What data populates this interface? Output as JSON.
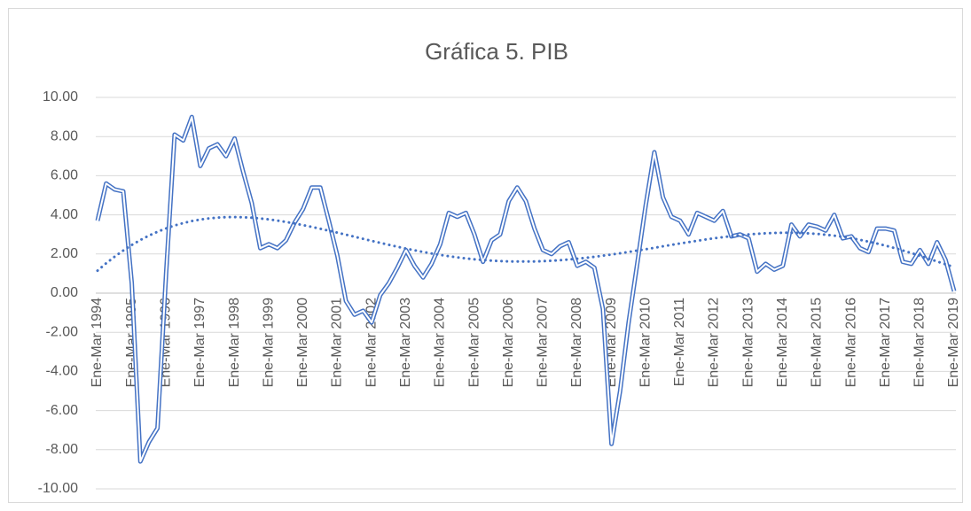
{
  "chart_data": {
    "type": "line",
    "title": "Gráfica 5. PIB",
    "categories": [
      "Ene-Mar 1994",
      null,
      null,
      null,
      "Ene-Mar 1995",
      null,
      null,
      null,
      "Ene-Mar 1996",
      null,
      null,
      null,
      "Ene-Mar 1997",
      null,
      null,
      null,
      "Ene-Mar 1998",
      null,
      null,
      null,
      "Ene-Mar 1999",
      null,
      null,
      null,
      "Ene-Mar 2000",
      null,
      null,
      null,
      "Ene-Mar 2001",
      null,
      null,
      null,
      "Ene-Mar 2002",
      null,
      null,
      null,
      "Ene-Mar 2003",
      null,
      null,
      null,
      "Ene-Mar 2004",
      null,
      null,
      null,
      "Ene-Mar 2005",
      null,
      null,
      null,
      "Ene-Mar 2006",
      null,
      null,
      null,
      "Ene-Mar 2007",
      null,
      null,
      null,
      "Ene-Mar 2008",
      null,
      null,
      null,
      "Ene-Mar 2009",
      null,
      null,
      null,
      "Ene-Mar 2010",
      null,
      null,
      null,
      "Ene-Mar 2011",
      null,
      null,
      null,
      "Ene-Mar 2012",
      null,
      null,
      null,
      "Ene-Mar 2013",
      null,
      null,
      null,
      "Ene-Mar 2014",
      null,
      null,
      null,
      "Ene-Mar 2015",
      null,
      null,
      null,
      "Ene-Mar 2016",
      null,
      null,
      null,
      "Ene-Mar 2017",
      null,
      null,
      null,
      "Ene-Mar 2018",
      null,
      null,
      null,
      "Ene-Mar 2019"
    ],
    "values": [
      3.7,
      5.6,
      5.3,
      5.2,
      0.5,
      -8.6,
      -7.6,
      -6.9,
      1.0,
      8.1,
      7.8,
      9.0,
      6.5,
      7.4,
      7.6,
      7.0,
      7.9,
      6.2,
      4.6,
      2.3,
      2.5,
      2.3,
      2.7,
      3.6,
      4.3,
      5.4,
      5.4,
      3.7,
      1.9,
      -0.4,
      -1.1,
      -0.9,
      -1.5,
      -0.1,
      0.5,
      1.3,
      2.2,
      1.4,
      0.8,
      1.5,
      2.5,
      4.1,
      3.9,
      4.1,
      3.0,
      1.6,
      2.7,
      3.0,
      4.7,
      5.4,
      4.7,
      3.3,
      2.2,
      2.0,
      2.4,
      2.6,
      1.4,
      1.6,
      1.3,
      -0.8,
      -7.7,
      -5.0,
      -1.5,
      1.5,
      4.5,
      7.2,
      4.9,
      3.9,
      3.7,
      3.0,
      4.1,
      3.9,
      3.7,
      4.2,
      2.9,
      3.0,
      2.8,
      1.1,
      1.5,
      1.2,
      1.4,
      3.5,
      2.9,
      3.5,
      3.4,
      3.2,
      4.0,
      2.8,
      2.9,
      2.3,
      2.1,
      3.3,
      3.3,
      3.2,
      1.6,
      1.5,
      2.2,
      1.5,
      2.6,
      1.7,
      0.1
    ],
    "color": "#4472c4",
    "trendline": "polynomial",
    "ylim": [
      -10,
      10
    ],
    "yticks": [
      {
        "value": -10,
        "label": "-10.00"
      },
      {
        "value": -8,
        "label": "-8.00"
      },
      {
        "value": -6,
        "label": "-6.00"
      },
      {
        "value": -4,
        "label": "-4.00"
      },
      {
        "value": -2,
        "label": "-2.00"
      },
      {
        "value": 0,
        "label": "0.00"
      },
      {
        "value": 2,
        "label": "2.00"
      },
      {
        "value": 4,
        "label": "4.00"
      },
      {
        "value": 6,
        "label": "6.00"
      },
      {
        "value": 8,
        "label": "8.00"
      },
      {
        "value": 10,
        "label": "10.00"
      }
    ],
    "grid": true
  }
}
